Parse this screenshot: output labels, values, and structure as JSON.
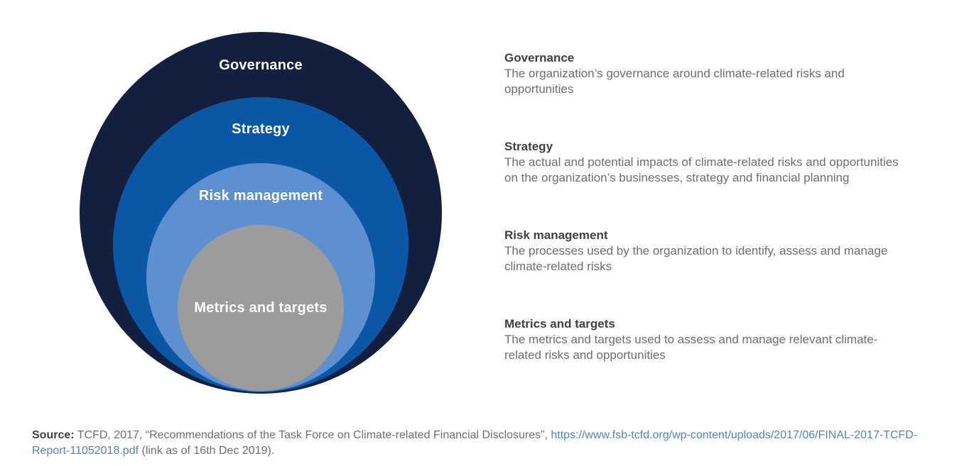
{
  "diagram": {
    "rings": [
      {
        "label": "Governance",
        "color": "#131f3e"
      },
      {
        "label": "Strategy",
        "color": "#0c57a5"
      },
      {
        "label": "Risk management",
        "color": "#5e8fd0"
      },
      {
        "label": "Metrics and targets",
        "color": "#9c9c9c"
      }
    ]
  },
  "legend": {
    "items": [
      {
        "title": "Governance",
        "description": "The organization’s governance around climate-related risks and\nopportunities"
      },
      {
        "title": "Strategy",
        "description": "The actual and potential impacts of climate-related risks and opportunities\non the organization’s businesses, strategy and financial planning"
      },
      {
        "title": "Risk management",
        "description": "The processes used by the organization to identify, assess and manage\nclimate-related risks"
      },
      {
        "title": "Metrics and targets",
        "description": "The metrics and targets used to assess and manage relevant climate-\nrelated risks and opportunities"
      }
    ]
  },
  "source": {
    "label": "Source:",
    "citation": " TCFD, 2017, “Recommendations of the Task Force on Climate-related Financial Disclosures”, ",
    "link_text": "https://www.fsb-tcfd.org/wp-content/uploads/2017/06/FINAL-2017-TCFD-Report-11052018.pdf",
    "link_suffix": " (link as of 16th Dec 2019)."
  },
  "colors": {
    "background": "#ffffff",
    "ring_label_text": "#ffffff",
    "legend_heading": "#414042",
    "legend_body": "#6d6e71",
    "link": "#4e84c6"
  }
}
